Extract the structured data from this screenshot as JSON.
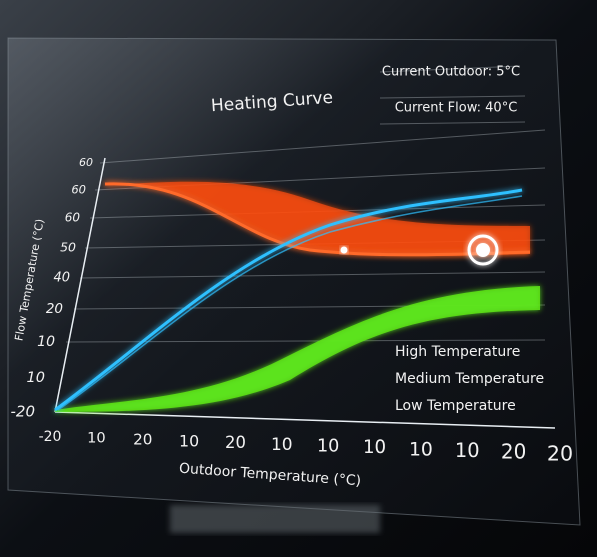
{
  "title": "Heating Curve",
  "info": [
    "Current Outdoor: 5°C",
    "Current Flow: 40°C"
  ],
  "y_axis": {
    "label": "Flow Temperature (°C)",
    "tick_labels": [
      "60",
      "60",
      "60",
      "50",
      "40",
      "20",
      "10",
      "10",
      "-20"
    ]
  },
  "x_axis": {
    "label": "Outdoor Temperature (°C)",
    "tick_labels": [
      "-20",
      "10",
      "20",
      "10",
      "20",
      "10",
      "10",
      "10",
      "10",
      "10",
      "20",
      "20"
    ]
  },
  "legend": [
    {
      "label": "High Temperature",
      "color": "#ff5a1f"
    },
    {
      "label": "Medium Temperature",
      "color": "#27b6ff"
    },
    {
      "label": "Low Temperature",
      "color": "#6ef01e"
    }
  ]
}
